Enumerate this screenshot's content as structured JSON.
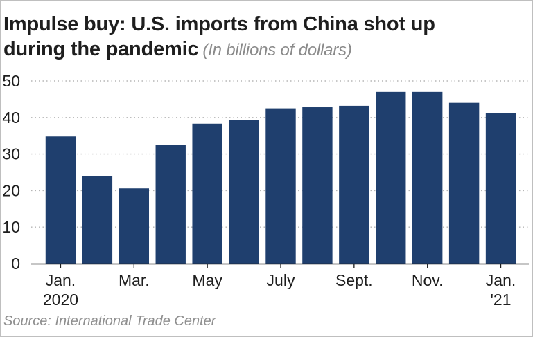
{
  "header": {
    "title_line1": "Impulse buy: U.S. imports from China shot up",
    "title_line2": "during the pandemic",
    "subtitle": "(In billions of dollars)"
  },
  "source": "Source: International Trade Center",
  "colors": {
    "bar": "#1f3f6e",
    "grid": "#b5b5b5",
    "axis": "#1e1e1e"
  },
  "chart_data": {
    "type": "bar",
    "title": "Impulse buy: U.S. imports from China shot up during the pandemic",
    "subtitle": "(In billions of dollars)",
    "xlabel": "",
    "ylabel": "",
    "ylim": [
      0,
      50
    ],
    "yticks": [
      "0",
      "10",
      "20",
      "30",
      "40",
      "50"
    ],
    "grid": "horizontal dotted",
    "categories": [
      "Jan. 2020",
      "Feb. 2020",
      "Mar. 2020",
      "Apr. 2020",
      "May 2020",
      "June 2020",
      "July 2020",
      "Aug. 2020",
      "Sept. 2020",
      "Oct. 2020",
      "Nov. 2020",
      "Dec. 2020",
      "Jan. 2021"
    ],
    "xtick_labels": [
      {
        "index": 0,
        "line1": "Jan.",
        "line2": "2020"
      },
      {
        "index": 2,
        "line1": "Mar.",
        "line2": ""
      },
      {
        "index": 4,
        "line1": "May",
        "line2": ""
      },
      {
        "index": 6,
        "line1": "July",
        "line2": ""
      },
      {
        "index": 8,
        "line1": "Sept.",
        "line2": ""
      },
      {
        "index": 10,
        "line1": "Nov.",
        "line2": ""
      },
      {
        "index": 12,
        "line1": "Jan.",
        "line2": "'21"
      }
    ],
    "values": [
      34.8,
      23.9,
      20.6,
      32.5,
      38.3,
      39.3,
      42.5,
      42.8,
      43.2,
      47.0,
      47.0,
      44.0,
      41.2
    ]
  }
}
